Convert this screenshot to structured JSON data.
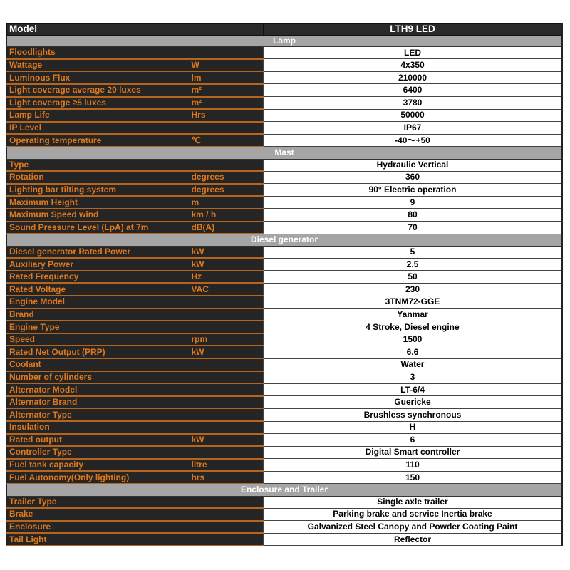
{
  "model": {
    "label": "Model",
    "value": "LTH9 LED"
  },
  "sections": [
    {
      "title": "Lamp",
      "rows": [
        {
          "label": "Floodlights",
          "unit": "",
          "value": "LED"
        },
        {
          "label": "Wattage",
          "unit": "W",
          "value": "4x350"
        },
        {
          "label": "Luminous Flux",
          "unit": "lm",
          "value": "210000"
        },
        {
          "label": "Light coverage average 20 luxes",
          "unit": "m²",
          "value": "6400"
        },
        {
          "label": "Light coverage ≥5 luxes",
          "unit": "m²",
          "value": "3780"
        },
        {
          "label": "Lamp Life",
          "unit": "Hrs",
          "value": "50000"
        },
        {
          "label": "IP Level",
          "unit": "",
          "value": "IP67"
        },
        {
          "label": "Operating temperature",
          "unit": "℃",
          "value": "-40～+50"
        }
      ]
    },
    {
      "title": "Mast",
      "rows": [
        {
          "label": "Type",
          "unit": "",
          "value": "Hydraulic Vertical"
        },
        {
          "label": "Rotation",
          "unit": "degrees",
          "value": "360"
        },
        {
          "label": "Lighting bar tilting system",
          "unit": "degrees",
          "value": "90° Electric operation"
        },
        {
          "label": "Maximum Height",
          "unit": "m",
          "value": "9"
        },
        {
          "label": "Maximum Speed wind",
          "unit": "km / h",
          "value": "80"
        },
        {
          "label": "Sound Pressure Level (LpA) at 7m",
          "unit": "dB(A)",
          "value": "70"
        }
      ]
    },
    {
      "title": "Diesel generator",
      "rows": [
        {
          "label": "Diesel generator Rated Power",
          "unit": "kW",
          "value": "5"
        },
        {
          "label": "Auxiliary Power",
          "unit": "kW",
          "value": "2.5"
        },
        {
          "label": "Rated Frequency",
          "unit": "Hz",
          "value": "50"
        },
        {
          "label": "Rated Voltage",
          "unit": "VAC",
          "value": "230"
        },
        {
          "label": "Engine Model",
          "unit": "",
          "value": "3TNM72-GGE"
        },
        {
          "label": "Brand",
          "unit": "",
          "value": "Yanmar"
        },
        {
          "label": "Engine Type",
          "unit": "",
          "value": "4 Stroke, Diesel engine"
        },
        {
          "label": "Speed",
          "unit": "rpm",
          "value": "1500"
        },
        {
          "label": "Rated Net Output (PRP)",
          "unit": "kW",
          "value": "6.6"
        },
        {
          "label": "Coolant",
          "unit": "",
          "value": "Water"
        },
        {
          "label": "Number of cylinders",
          "unit": "",
          "value": "3"
        },
        {
          "label": "Alternator Model",
          "unit": "",
          "value": "LT-6/4"
        },
        {
          "label": "Alternator Brand",
          "unit": "",
          "value": "Guericke"
        },
        {
          "label": "Alternator Type",
          "unit": "",
          "value": "Brushless synchronous"
        },
        {
          "label": "Insulation",
          "unit": "",
          "value": "H"
        },
        {
          "label": "Rated output",
          "unit": "kW",
          "value": "6"
        },
        {
          "label": "Controller Type",
          "unit": "",
          "value": "Digital Smart controller"
        },
        {
          "label": "Fuel tank capacity",
          "unit": "litre",
          "value": "110"
        },
        {
          "label": "Fuel Autonomy(Only lighting)",
          "unit": "hrs",
          "value": "150"
        }
      ]
    },
    {
      "title": "Enclosure and Trailer",
      "rows": [
        {
          "label": "Trailer Type",
          "unit": "",
          "value": "Single axle trailer"
        },
        {
          "label": "Brake",
          "unit": "",
          "value": "Parking brake and service Inertia brake"
        },
        {
          "label": "Enclosure",
          "unit": "",
          "value": "Galvanized Steel Canopy and Powder Coating Paint"
        },
        {
          "label": "Tail Light",
          "unit": "",
          "value": "Reflector"
        }
      ]
    }
  ]
}
